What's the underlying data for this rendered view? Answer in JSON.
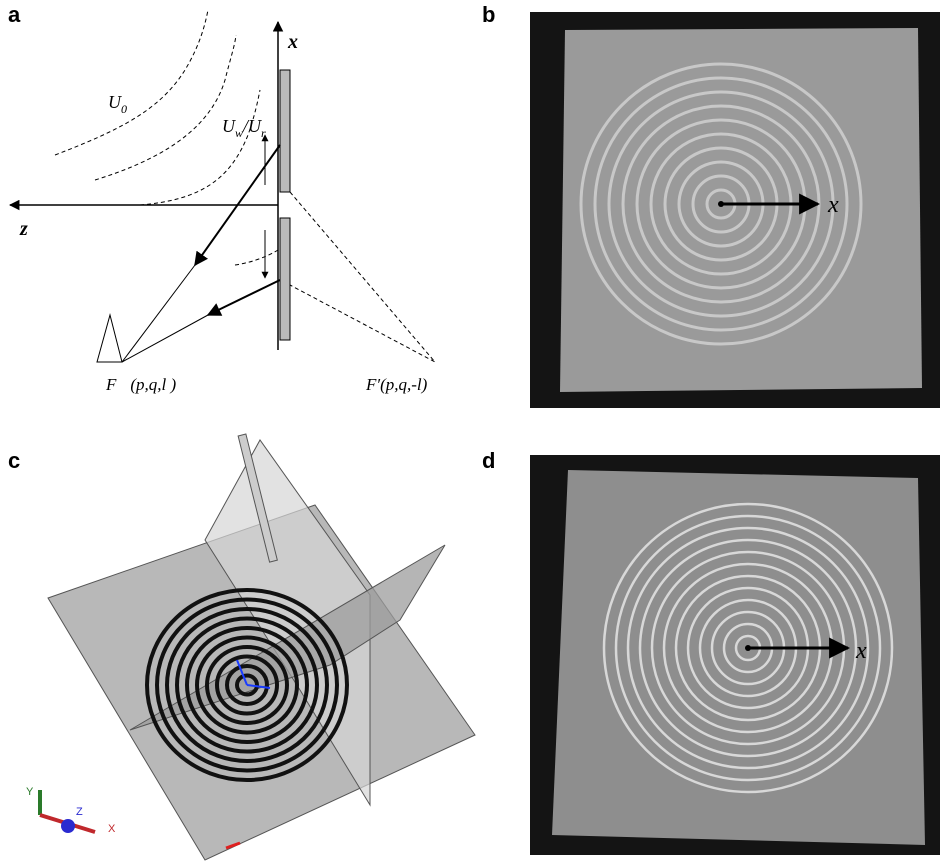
{
  "panel_a": {
    "label": "a",
    "axis_x": "x",
    "axis_z": "z",
    "u0": {
      "base": "U",
      "sub": "0"
    },
    "uw_ur": {
      "base1": "U",
      "sub1": "w",
      "base2": "/U",
      "sub2": "r"
    },
    "focus": {
      "name": "F",
      "coords": "(p,q,l )"
    },
    "image_focus": "F′(p,q,-l)"
  },
  "panel_b": {
    "label": "b",
    "axis_x": "x"
  },
  "panel_c": {
    "label": "c",
    "axis_y": "Y",
    "axis_z": "Z",
    "axis_x": "X"
  },
  "panel_d": {
    "label": "d",
    "axis_x": "x"
  }
}
